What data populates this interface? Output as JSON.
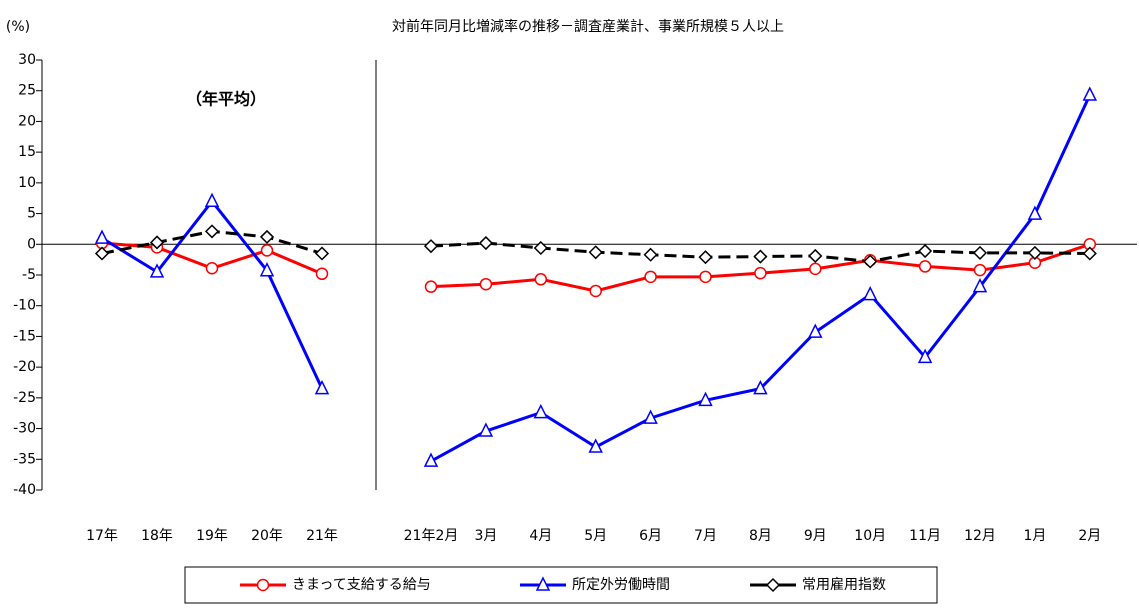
{
  "chart_data": [
    {
      "type": "line",
      "title": "対前年同月比増減率の推移－調査産業計、事業所規模５人以上",
      "y_label": "(%)",
      "annotation": "（年平均）",
      "ylim": [
        -40,
        30
      ],
      "yticks": [
        -40,
        -35,
        -30,
        -25,
        -20,
        -15,
        -10,
        -5,
        0,
        5,
        10,
        15,
        20,
        25,
        30
      ],
      "categories": [
        "17年",
        "18年",
        "19年",
        "20年",
        "21年"
      ],
      "series": [
        {
          "name": "きまって支給する給与",
          "color": "#ff0000",
          "marker": "circle",
          "line_style": "solid",
          "values": [
            0.2,
            -0.5,
            -3.9,
            -1.0,
            -4.8
          ]
        },
        {
          "name": "所定外労働時間",
          "color": "#0000ff",
          "marker": "triangle",
          "line_style": "solid",
          "values": [
            1.0,
            -4.5,
            7.0,
            -4.3,
            -23.5
          ]
        },
        {
          "name": "常用雇用指数",
          "color": "#000000",
          "marker": "diamond",
          "line_style": "dashed",
          "values": [
            -1.5,
            0.3,
            2.1,
            1.2,
            -1.5
          ]
        }
      ]
    },
    {
      "type": "line",
      "categories": [
        "21年2月",
        "3月",
        "4月",
        "5月",
        "6月",
        "7月",
        "8月",
        "9月",
        "10月",
        "11月",
        "12月",
        "1月",
        "2月"
      ],
      "series": [
        {
          "color": "#ff0000",
          "marker": "circle",
          "line_style": "solid",
          "values": [
            -6.9,
            -6.5,
            -5.7,
            -7.6,
            -5.3,
            -5.3,
            -4.7,
            -4.0,
            -2.6,
            -3.6,
            -4.2,
            -3.0,
            0.0
          ]
        },
        {
          "color": "#0000ff",
          "marker": "triangle",
          "line_style": "solid",
          "values": [
            -35.3,
            -30.4,
            -27.4,
            -33.0,
            -28.3,
            -25.4,
            -23.5,
            -14.3,
            -8.2,
            -18.4,
            -6.9,
            4.9,
            24.3
          ]
        },
        {
          "color": "#000000",
          "marker": "diamond",
          "line_style": "dashed",
          "values": [
            -0.3,
            0.2,
            -0.6,
            -1.3,
            -1.7,
            -2.1,
            -2.0,
            -1.9,
            -2.8,
            -1.1,
            -1.4,
            -1.4,
            -1.5
          ]
        }
      ]
    }
  ]
}
